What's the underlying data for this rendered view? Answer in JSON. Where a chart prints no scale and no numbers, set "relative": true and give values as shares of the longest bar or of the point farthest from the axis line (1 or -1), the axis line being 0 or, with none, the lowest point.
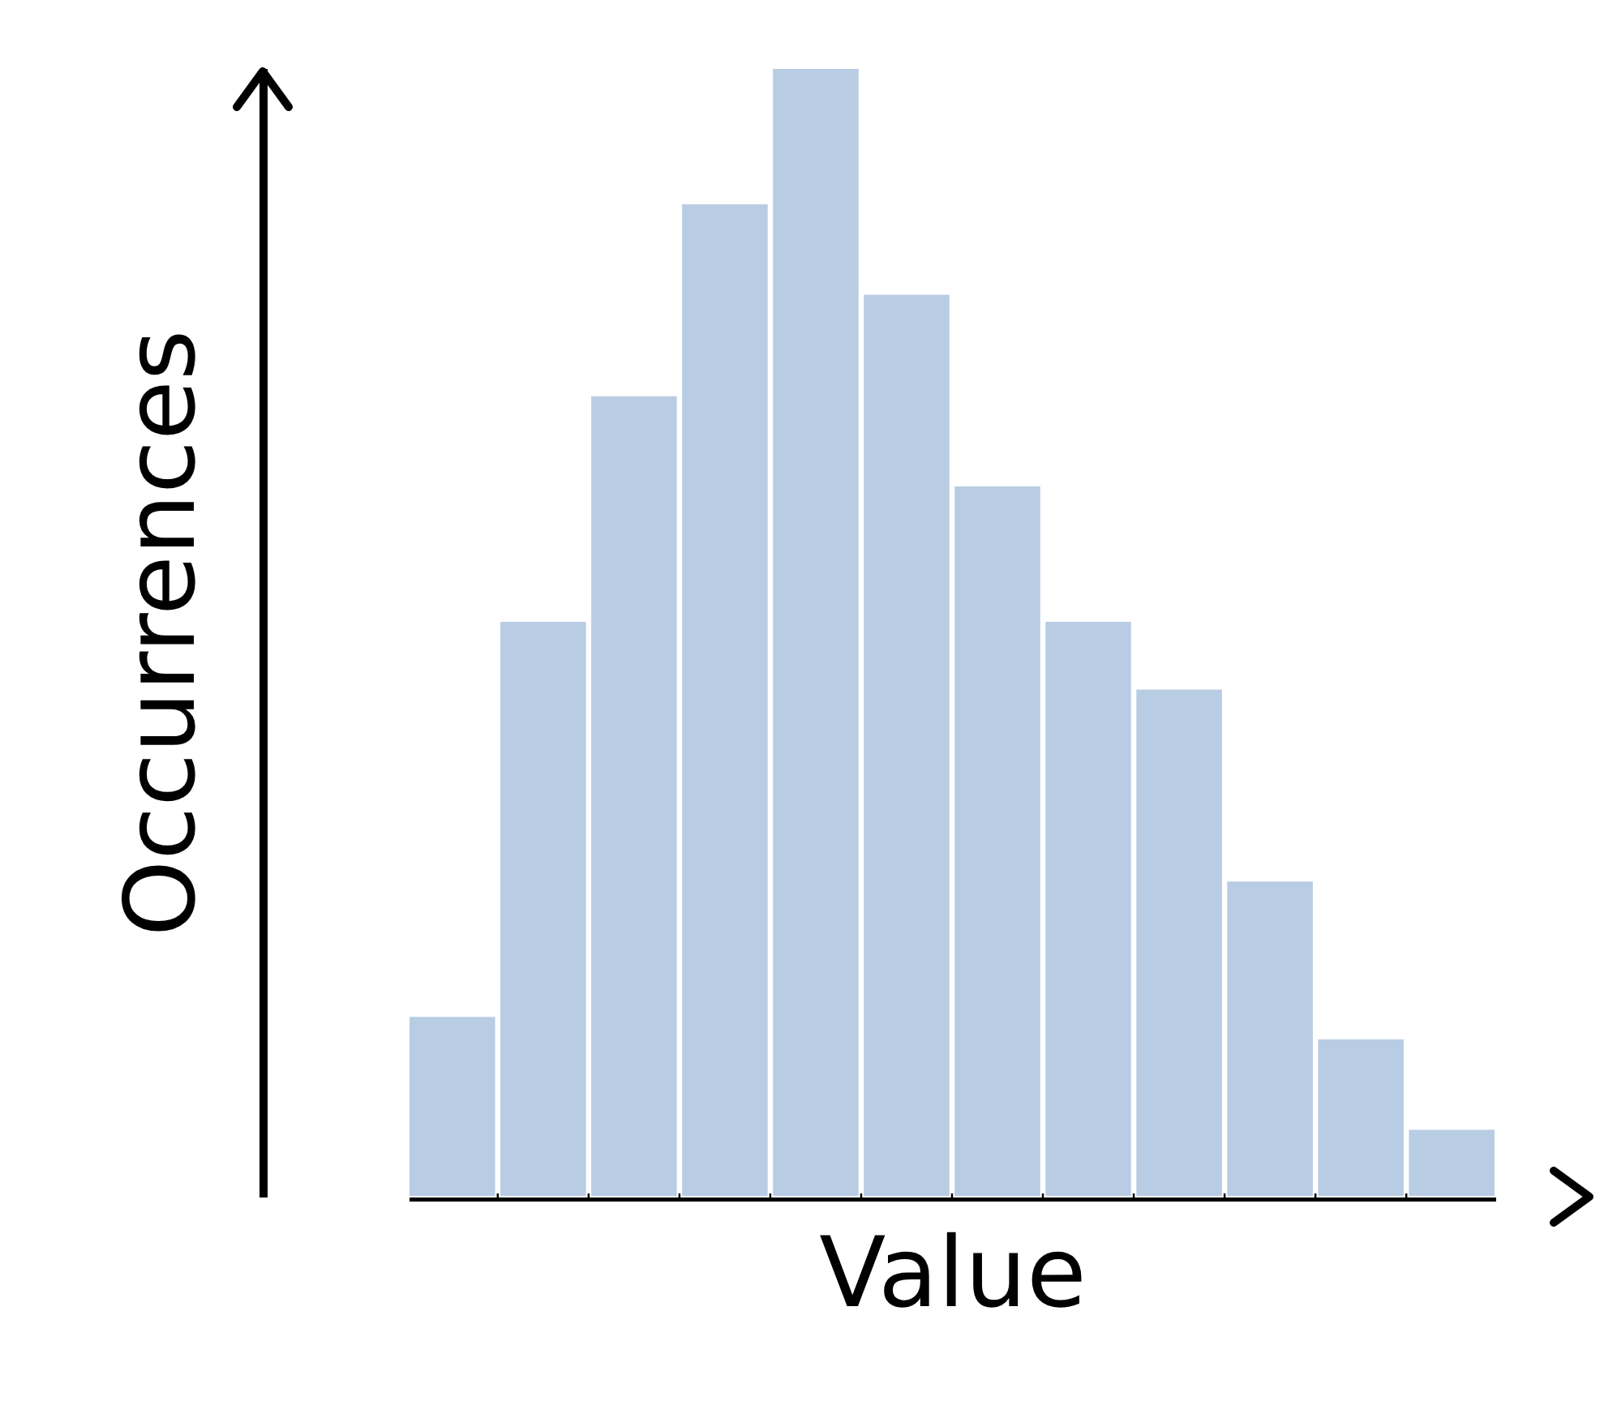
{
  "chart_data": {
    "type": "bar",
    "relative": true,
    "xlabel": "Value",
    "ylabel": "Occurrences",
    "color": "#b8cce4",
    "categories": [
      null,
      null,
      null,
      null,
      null,
      null,
      null,
      null,
      null,
      null,
      null,
      null
    ],
    "values": [
      0.16,
      0.51,
      0.71,
      0.88,
      1,
      0.8,
      0.63,
      0.51,
      0.45,
      0.28,
      0.14,
      0.06
    ]
  }
}
